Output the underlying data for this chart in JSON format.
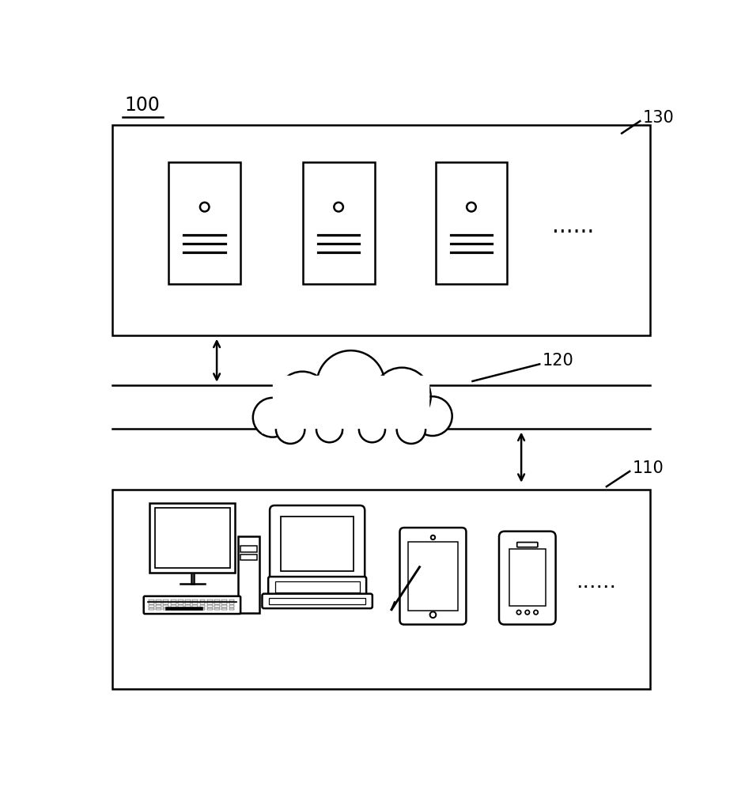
{
  "bg_color": "#ffffff",
  "line_color": "#000000",
  "label_100": "100",
  "label_130": "130",
  "label_120": "120",
  "label_110": "110",
  "dots": "......",
  "fig_width": 9.42,
  "fig_height": 10.0
}
